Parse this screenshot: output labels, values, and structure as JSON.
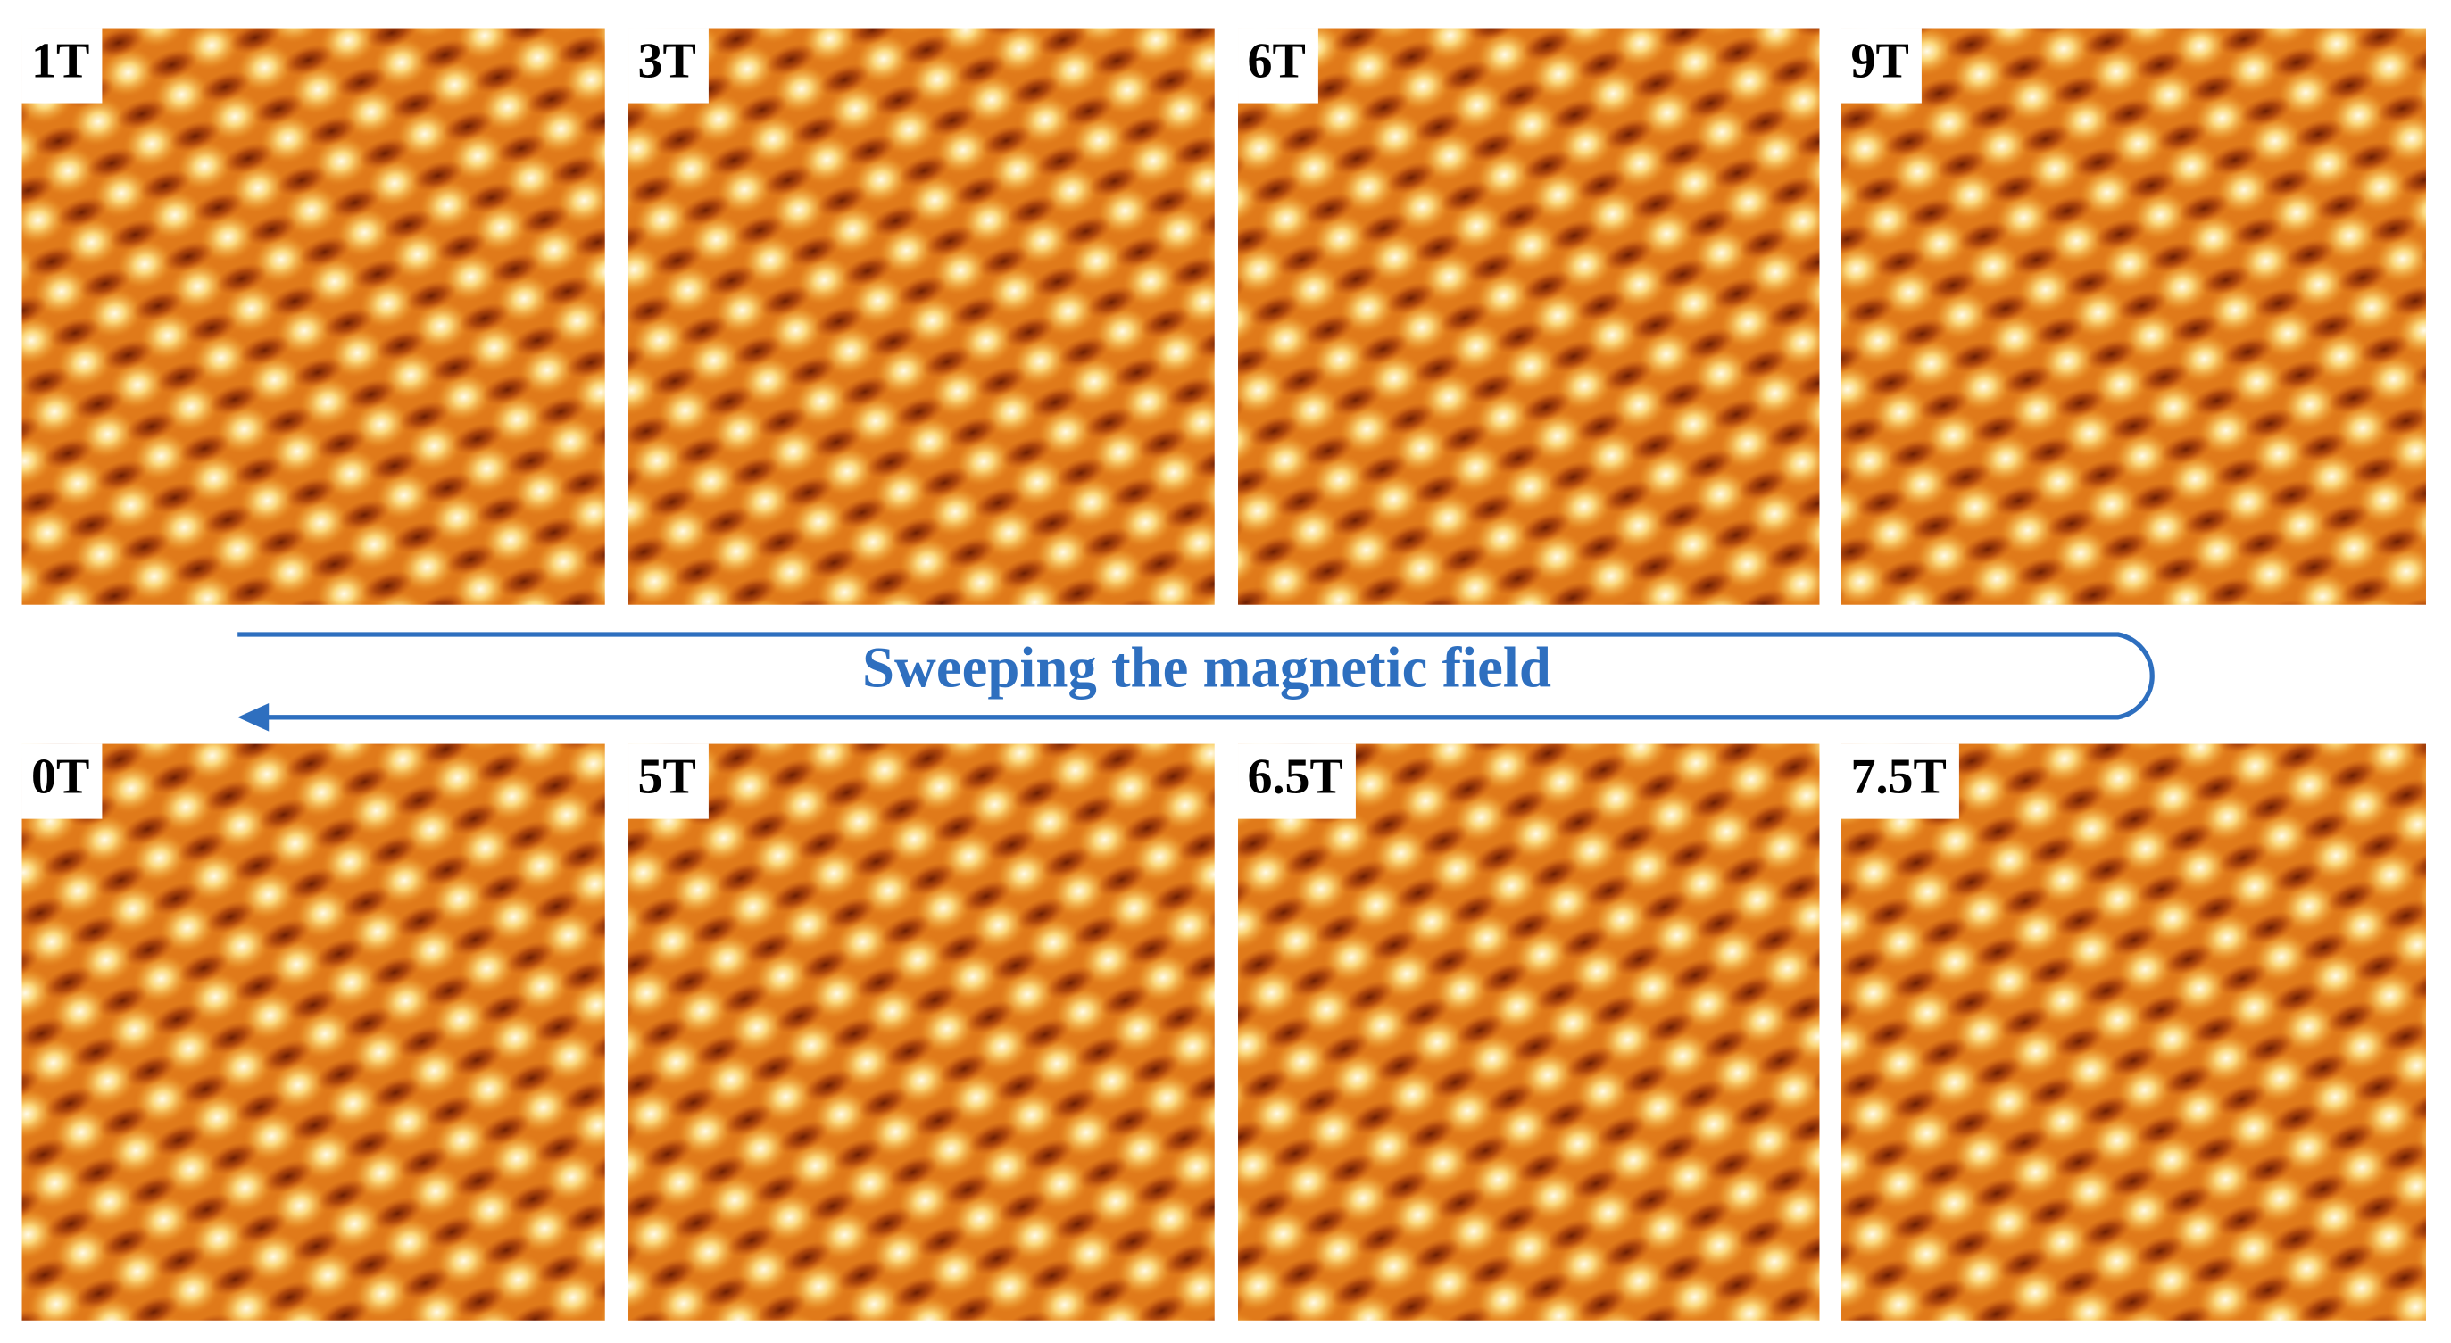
{
  "rows": [
    [
      {
        "label": "1T"
      },
      {
        "label": "3T"
      },
      {
        "label": "6T"
      },
      {
        "label": "9T"
      }
    ],
    [
      {
        "label": "0T"
      },
      {
        "label": "5T"
      },
      {
        "label": "6.5T"
      },
      {
        "label": "7.5T"
      }
    ]
  ],
  "caption": "Sweeping the magnetic field"
}
